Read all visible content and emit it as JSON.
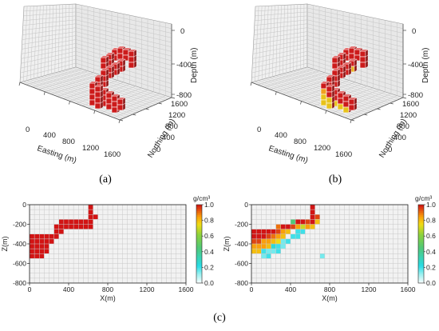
{
  "captions": {
    "a": "(a)",
    "b": "(b)",
    "c": "(c)"
  },
  "panel_a": {
    "depth_label": "Depth (m)",
    "depth_ticks": [
      "0",
      "-400",
      "-800"
    ],
    "northing_label": "Northing (m)",
    "northing_ticks": [
      "0",
      "400",
      "800",
      "1200",
      "1600"
    ],
    "easting_label": "Easting (m)",
    "easting_ticks": [
      "0",
      "400",
      "800",
      "1200",
      "1600"
    ]
  },
  "panel_b": {
    "depth_label": "Depth (m)",
    "depth_ticks": [
      "0",
      "-400",
      "-800"
    ],
    "northing_label": "Northing (m)",
    "northing_ticks": [
      "0",
      "400",
      "800",
      "1200",
      "1600"
    ],
    "easting_label": "Easting (m)",
    "easting_ticks": [
      "0",
      "400",
      "800",
      "1200",
      "1600"
    ]
  },
  "chart_data": [
    {
      "type": "heatmap",
      "xlabel": "X(m)",
      "ylabel": "Z(m)",
      "xlim": [
        0,
        1600
      ],
      "ylim": [
        -800,
        0
      ],
      "xticks": [
        "0",
        "400",
        "800",
        "1200",
        "1600"
      ],
      "yticks": [
        "0",
        "-200",
        "-400",
        "-600",
        "-800"
      ],
      "colorbar_label": "g/cm³",
      "colorbar_ticks": [
        "0.0",
        "0.2",
        "0.4",
        "0.6",
        "0.8",
        "1.0"
      ],
      "cell_size": 50,
      "cells": [
        {
          "x": 600,
          "z": 0,
          "v": 1.0
        },
        {
          "x": 600,
          "z": -50,
          "v": 1.0
        },
        {
          "x": 600,
          "z": -100,
          "v": 1.0
        },
        {
          "x": 650,
          "z": -100,
          "v": 1.0
        },
        {
          "x": 300,
          "z": -150,
          "v": 1.0
        },
        {
          "x": 350,
          "z": -150,
          "v": 1.0
        },
        {
          "x": 400,
          "z": -150,
          "v": 1.0
        },
        {
          "x": 450,
          "z": -150,
          "v": 1.0
        },
        {
          "x": 500,
          "z": -150,
          "v": 1.0
        },
        {
          "x": 550,
          "z": -150,
          "v": 1.0
        },
        {
          "x": 600,
          "z": -150,
          "v": 1.0
        },
        {
          "x": 250,
          "z": -200,
          "v": 1.0
        },
        {
          "x": 300,
          "z": -200,
          "v": 1.0
        },
        {
          "x": 350,
          "z": -200,
          "v": 1.0
        },
        {
          "x": 400,
          "z": -200,
          "v": 1.0
        },
        {
          "x": 450,
          "z": -200,
          "v": 1.0
        },
        {
          "x": 500,
          "z": -200,
          "v": 1.0
        },
        {
          "x": 550,
          "z": -200,
          "v": 1.0
        },
        {
          "x": 600,
          "z": -200,
          "v": 1.0
        },
        {
          "x": 250,
          "z": -250,
          "v": 1.0
        },
        {
          "x": 300,
          "z": -250,
          "v": 1.0
        },
        {
          "x": 0,
          "z": -300,
          "v": 1.0
        },
        {
          "x": 50,
          "z": -300,
          "v": 1.0
        },
        {
          "x": 100,
          "z": -300,
          "v": 1.0
        },
        {
          "x": 150,
          "z": -300,
          "v": 1.0
        },
        {
          "x": 200,
          "z": -300,
          "v": 1.0
        },
        {
          "x": 250,
          "z": -300,
          "v": 1.0
        },
        {
          "x": 0,
          "z": -350,
          "v": 1.0
        },
        {
          "x": 50,
          "z": -350,
          "v": 1.0
        },
        {
          "x": 100,
          "z": -350,
          "v": 1.0
        },
        {
          "x": 150,
          "z": -350,
          "v": 1.0
        },
        {
          "x": 200,
          "z": -350,
          "v": 1.0
        },
        {
          "x": 0,
          "z": -400,
          "v": 1.0
        },
        {
          "x": 50,
          "z": -400,
          "v": 1.0
        },
        {
          "x": 100,
          "z": -400,
          "v": 1.0
        },
        {
          "x": 150,
          "z": -400,
          "v": 1.0
        },
        {
          "x": 0,
          "z": -450,
          "v": 1.0
        },
        {
          "x": 50,
          "z": -450,
          "v": 1.0
        },
        {
          "x": 100,
          "z": -450,
          "v": 1.0
        },
        {
          "x": 150,
          "z": -450,
          "v": 1.0
        },
        {
          "x": 0,
          "z": -500,
          "v": 1.0
        },
        {
          "x": 50,
          "z": -500,
          "v": 1.0
        },
        {
          "x": 100,
          "z": -500,
          "v": 1.0
        }
      ]
    },
    {
      "type": "heatmap",
      "xlabel": "X(m)",
      "ylabel": "Z(m)",
      "xlim": [
        0,
        1600
      ],
      "ylim": [
        -800,
        0
      ],
      "xticks": [
        "0",
        "400",
        "800",
        "1200",
        "1600"
      ],
      "yticks": [
        "0",
        "-200",
        "-400",
        "-600",
        "-800"
      ],
      "colorbar_label": "g/cm³",
      "colorbar_ticks": [
        "0.0",
        "0.2",
        "0.4",
        "0.6",
        "0.8",
        "1.0"
      ],
      "cell_size": 50,
      "cells": [
        {
          "x": 600,
          "z": 0,
          "v": 1.0
        },
        {
          "x": 600,
          "z": -50,
          "v": 1.0
        },
        {
          "x": 600,
          "z": -100,
          "v": 1.0
        },
        {
          "x": 650,
          "z": -100,
          "v": 0.95
        },
        {
          "x": 400,
          "z": -150,
          "v": 0.45
        },
        {
          "x": 450,
          "z": -150,
          "v": 1.0
        },
        {
          "x": 500,
          "z": -150,
          "v": 1.0
        },
        {
          "x": 550,
          "z": -150,
          "v": 0.95
        },
        {
          "x": 600,
          "z": -150,
          "v": 1.0
        },
        {
          "x": 650,
          "z": -150,
          "v": 0.8
        },
        {
          "x": 250,
          "z": -200,
          "v": 0.9
        },
        {
          "x": 300,
          "z": -200,
          "v": 1.0
        },
        {
          "x": 350,
          "z": -200,
          "v": 1.0
        },
        {
          "x": 400,
          "z": -200,
          "v": 0.95
        },
        {
          "x": 450,
          "z": -200,
          "v": 0.85
        },
        {
          "x": 500,
          "z": -200,
          "v": 0.7
        },
        {
          "x": 550,
          "z": -200,
          "v": 0.85
        },
        {
          "x": 600,
          "z": -200,
          "v": 0.8
        },
        {
          "x": 0,
          "z": -250,
          "v": 1.0
        },
        {
          "x": 50,
          "z": -250,
          "v": 1.0
        },
        {
          "x": 100,
          "z": -250,
          "v": 1.0
        },
        {
          "x": 150,
          "z": -250,
          "v": 1.0
        },
        {
          "x": 200,
          "z": -250,
          "v": 1.0
        },
        {
          "x": 250,
          "z": -250,
          "v": 0.95
        },
        {
          "x": 300,
          "z": -250,
          "v": 0.85
        },
        {
          "x": 350,
          "z": -250,
          "v": 0.8
        },
        {
          "x": 450,
          "z": -250,
          "v": 0.2
        },
        {
          "x": 500,
          "z": -250,
          "v": 0.2
        },
        {
          "x": 0,
          "z": -300,
          "v": 1.0
        },
        {
          "x": 50,
          "z": -300,
          "v": 1.0
        },
        {
          "x": 100,
          "z": -300,
          "v": 1.0
        },
        {
          "x": 150,
          "z": -300,
          "v": 0.95
        },
        {
          "x": 200,
          "z": -300,
          "v": 0.9
        },
        {
          "x": 250,
          "z": -300,
          "v": 0.85
        },
        {
          "x": 300,
          "z": -300,
          "v": 0.8
        },
        {
          "x": 400,
          "z": -300,
          "v": 0.2
        },
        {
          "x": 450,
          "z": -300,
          "v": 0.2
        },
        {
          "x": 0,
          "z": -350,
          "v": 0.95
        },
        {
          "x": 50,
          "z": -350,
          "v": 0.95
        },
        {
          "x": 100,
          "z": -350,
          "v": 0.85
        },
        {
          "x": 150,
          "z": -350,
          "v": 0.85
        },
        {
          "x": 200,
          "z": -350,
          "v": 0.8
        },
        {
          "x": 250,
          "z": -350,
          "v": 0.75
        },
        {
          "x": 300,
          "z": -350,
          "v": 0.15
        },
        {
          "x": 350,
          "z": -350,
          "v": 0.2
        },
        {
          "x": 0,
          "z": -400,
          "v": 0.85
        },
        {
          "x": 50,
          "z": -400,
          "v": 0.85
        },
        {
          "x": 100,
          "z": -400,
          "v": 0.85
        },
        {
          "x": 150,
          "z": -400,
          "v": 0.8
        },
        {
          "x": 200,
          "z": -400,
          "v": 0.25
        },
        {
          "x": 250,
          "z": -400,
          "v": 0.2
        },
        {
          "x": 300,
          "z": -400,
          "v": 0.15
        },
        {
          "x": 0,
          "z": -450,
          "v": 0.8
        },
        {
          "x": 50,
          "z": -450,
          "v": 0.8
        },
        {
          "x": 100,
          "z": -450,
          "v": 0.2
        },
        {
          "x": 150,
          "z": -450,
          "v": 0.15
        },
        {
          "x": 200,
          "z": -450,
          "v": 0.15
        },
        {
          "x": 250,
          "z": -450,
          "v": 0.2
        },
        {
          "x": 100,
          "z": -500,
          "v": 0.15
        },
        {
          "x": 150,
          "z": -500,
          "v": 0.2
        },
        {
          "x": 700,
          "z": -500,
          "v": 0.15
        }
      ]
    }
  ]
}
